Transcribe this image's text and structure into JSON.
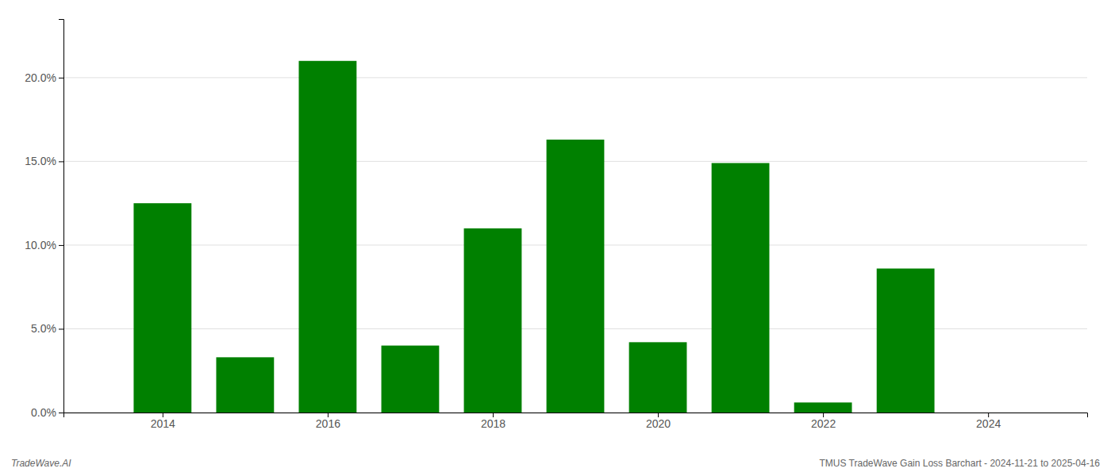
{
  "chart_data": {
    "type": "bar",
    "x": [
      2014,
      2015,
      2016,
      2017,
      2018,
      2019,
      2020,
      2021,
      2022,
      2023
    ],
    "values": [
      0.125,
      0.033,
      0.21,
      0.04,
      0.11,
      0.163,
      0.042,
      0.149,
      0.006,
      0.086
    ],
    "color": "#008000",
    "xlim": [
      2012.8,
      2025.2
    ],
    "xticks": [
      2014,
      2016,
      2018,
      2020,
      2022,
      2024
    ],
    "ylim": [
      0,
      0.235
    ],
    "yticks": [
      {
        "value": 0.0,
        "label": "0.0%"
      },
      {
        "value": 0.05,
        "label": "5.0%"
      },
      {
        "value": 0.1,
        "label": "10.0%"
      },
      {
        "value": 0.15,
        "label": "15.0%"
      },
      {
        "value": 0.2,
        "label": "20.0%"
      }
    ],
    "grid": true,
    "annotations": [
      "TradeWave.AI",
      "TMUS TradeWave Gain Loss Barchart - 2024-11-21 to 2025-04-16"
    ]
  }
}
